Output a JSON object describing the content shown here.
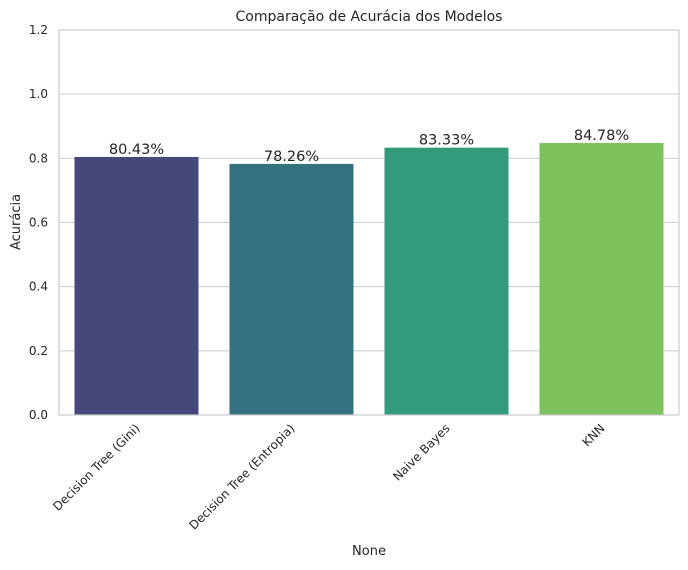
{
  "chart_data": {
    "type": "bar",
    "title": "Comparação de Acurácia dos Modelos",
    "xlabel": "None",
    "ylabel": "Acurácia",
    "categories": [
      "Decision Tree (Gini)",
      "Decision Tree (Entropia)",
      "Naive Bayes",
      "KNN"
    ],
    "values": [
      0.8043,
      0.7826,
      0.8333,
      0.8478
    ],
    "data_labels": [
      "80.43%",
      "78.26%",
      "83.33%",
      "84.78%"
    ],
    "colors": [
      "#46487c",
      "#34727f",
      "#339a7c",
      "#7ec25e"
    ],
    "ylim": [
      0,
      1.2
    ],
    "yticks": [
      0.0,
      0.2,
      0.4,
      0.6,
      0.8,
      1.0,
      1.2
    ],
    "ytick_labels": [
      "0.0",
      "0.2",
      "0.4",
      "0.6",
      "0.8",
      "1.0",
      "1.2"
    ],
    "grid": "horizontal",
    "x_tick_rotation_deg": 45,
    "style": {
      "grid_color": "#cccccc",
      "spine_color": "#cccccc",
      "text_color": "#262626",
      "background": "#ffffff"
    }
  }
}
